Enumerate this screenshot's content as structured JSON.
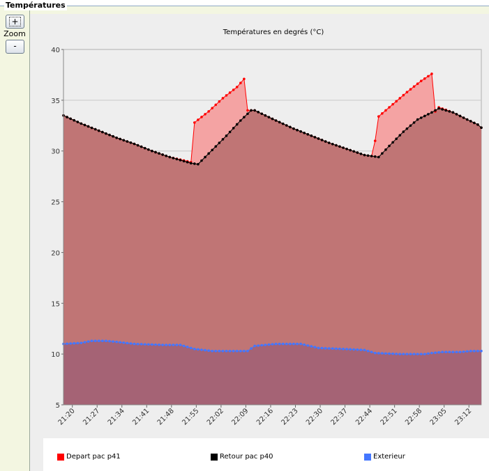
{
  "panel": {
    "title": "Températures",
    "zoom_in_label": "+",
    "zoom_label": "Zoom",
    "zoom_out_label": "-"
  },
  "chart_data": {
    "type": "area",
    "title": "Températures en degrés (°C)",
    "xlabel": "",
    "ylabel": "",
    "ylim": [
      5,
      40
    ],
    "yticks": [
      5,
      10,
      15,
      20,
      25,
      30,
      35,
      40
    ],
    "x_tick_labels": [
      "21:20",
      "21:27",
      "21:34",
      "21:41",
      "21:48",
      "21:55",
      "22:02",
      "22:09",
      "22:16",
      "22:23",
      "22:30",
      "22:37",
      "22:44",
      "22:51",
      "22:58",
      "23:05",
      "23:12"
    ],
    "x_tick_positions": [
      2.5,
      9.5,
      16.5,
      23.5,
      30.5,
      37.5,
      44.5,
      51.5,
      58.5,
      65.5,
      72.5,
      79.5,
      86.5,
      93.5,
      100.5,
      107.5,
      114.5
    ],
    "x_range": [
      0,
      118
    ],
    "grid": true,
    "series": [
      {
        "name": "Depart pac p41",
        "color": "#ff0000",
        "fill": "#f4a3a3",
        "points": [
          [
            0,
            33.5
          ],
          [
            5,
            32.7
          ],
          [
            10,
            32.0
          ],
          [
            15,
            31.3
          ],
          [
            20,
            30.7
          ],
          [
            25,
            30.0
          ],
          [
            30,
            29.4
          ],
          [
            36,
            28.9
          ],
          [
            37,
            32.8
          ],
          [
            41,
            33.9
          ],
          [
            45,
            35.2
          ],
          [
            49,
            36.3
          ],
          [
            51,
            37.1
          ],
          [
            52,
            34.0
          ],
          [
            54,
            34.0
          ],
          [
            60,
            33.0
          ],
          [
            65,
            32.2
          ],
          [
            70,
            31.5
          ],
          [
            75,
            30.8
          ],
          [
            80,
            30.2
          ],
          [
            85,
            29.6
          ],
          [
            87,
            29.5
          ],
          [
            88,
            31.0
          ],
          [
            89,
            33.4
          ],
          [
            93,
            34.6
          ],
          [
            97,
            35.8
          ],
          [
            101,
            36.9
          ],
          [
            104,
            37.6
          ],
          [
            105,
            33.9
          ],
          [
            106,
            34.3
          ],
          [
            110,
            33.8
          ],
          [
            114,
            33.1
          ],
          [
            117,
            32.6
          ],
          [
            118,
            32.3
          ]
        ]
      },
      {
        "name": "Retour pac p40",
        "color": "#000000",
        "fill": "#c07575",
        "points": [
          [
            0,
            33.5
          ],
          [
            5,
            32.7
          ],
          [
            10,
            32.0
          ],
          [
            15,
            31.3
          ],
          [
            20,
            30.7
          ],
          [
            25,
            30.0
          ],
          [
            30,
            29.4
          ],
          [
            36,
            28.8
          ],
          [
            38,
            28.7
          ],
          [
            42,
            30.1
          ],
          [
            46,
            31.5
          ],
          [
            50,
            33.0
          ],
          [
            53,
            34.0
          ],
          [
            54,
            34.0
          ],
          [
            60,
            33.0
          ],
          [
            65,
            32.2
          ],
          [
            70,
            31.5
          ],
          [
            75,
            30.8
          ],
          [
            80,
            30.2
          ],
          [
            85,
            29.6
          ],
          [
            89,
            29.4
          ],
          [
            92,
            30.5
          ],
          [
            96,
            31.9
          ],
          [
            100,
            33.1
          ],
          [
            104,
            33.8
          ],
          [
            106,
            34.2
          ],
          [
            110,
            33.8
          ],
          [
            114,
            33.1
          ],
          [
            117,
            32.6
          ],
          [
            118,
            32.3
          ]
        ]
      },
      {
        "name": "Exterieur",
        "color": "#4477ff",
        "fill": "#a56375",
        "points": [
          [
            0,
            11.0
          ],
          [
            5,
            11.1
          ],
          [
            8,
            11.3
          ],
          [
            12,
            11.3
          ],
          [
            15,
            11.2
          ],
          [
            20,
            11.0
          ],
          [
            28,
            10.9
          ],
          [
            33,
            10.9
          ],
          [
            37,
            10.5
          ],
          [
            42,
            10.3
          ],
          [
            52,
            10.3
          ],
          [
            54,
            10.8
          ],
          [
            60,
            11.0
          ],
          [
            67,
            11.0
          ],
          [
            72,
            10.6
          ],
          [
            79,
            10.5
          ],
          [
            85,
            10.4
          ],
          [
            88,
            10.1
          ],
          [
            95,
            10.0
          ],
          [
            102,
            10.0
          ],
          [
            104,
            10.1
          ],
          [
            107,
            10.2
          ],
          [
            112,
            10.2
          ],
          [
            115,
            10.3
          ],
          [
            118,
            10.3
          ]
        ]
      }
    ]
  }
}
